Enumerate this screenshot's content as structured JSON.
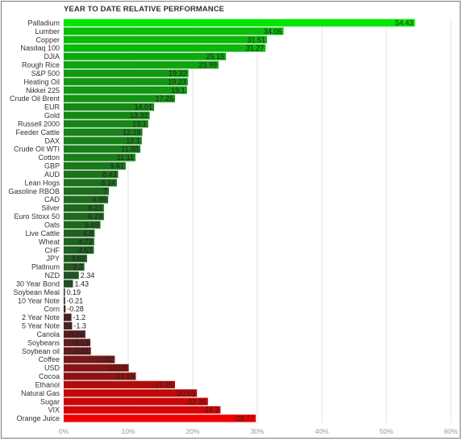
{
  "chart_data": {
    "type": "bar",
    "orientation": "horizontal",
    "title": "YEAR TO DATE RELATIVE PERFORMANCE",
    "categories": [
      "Palladium",
      "Lumber",
      "Copper",
      "Nasdaq 100",
      "DJIA",
      "Rough Rice",
      "S&P 500",
      "Heating Oil",
      "Nikkei 225",
      "Crude Oil Brent",
      "EUR",
      "Gold",
      "Russell 2000",
      "Feeder Cattle",
      "DAX",
      "Crude Oil WTI",
      "Cotton",
      "GBP",
      "AUD",
      "Lean Hogs",
      "Gasoline RBOB",
      "CAD",
      "Silver",
      "Euro Stoxx 50",
      "Oats",
      "Live Cattle",
      "Wheat",
      "CHF",
      "JPY",
      "Platinum",
      "NZD",
      "30 Year Bond",
      "Soybean Meal",
      "10 Year Note",
      "Corn",
      "2 Year Note",
      "5 Year Note",
      "Canola",
      "Soybeans",
      "Soybean oil",
      "Coffee",
      "USD",
      "Cocoa",
      "Ethanol",
      "Natural Gas",
      "Sugar",
      "VIX",
      "Orange Juice"
    ],
    "values": [
      54.43,
      34.06,
      31.51,
      31.27,
      25.15,
      23.99,
      19.32,
      19.23,
      19.1,
      17.25,
      14.01,
      13.32,
      13.1,
      12.19,
      12.1,
      11.88,
      11.11,
      9.61,
      8.43,
      8.24,
      7,
      6.89,
      6.23,
      6.23,
      5.69,
      4.8,
      4.72,
      4.67,
      3.62,
      3.2,
      2.34,
      1.43,
      0.19,
      -0.21,
      -0.28,
      -1.2,
      -1.3,
      -3.36,
      -4.13,
      -4.21,
      -7.92,
      -10.08,
      -11.19,
      -17.25,
      -20.65,
      -22.35,
      -24.3,
      -29.77
    ],
    "value_labels": [
      "54.43",
      "34.06",
      "31.51",
      "31.27",
      "25.15",
      "23.99",
      "19.32",
      "19.23",
      "19.1",
      "17.25",
      "14.01",
      "13.32",
      "13.1",
      "12.19",
      "12.1",
      "11.88",
      "11.11",
      "9.61",
      "8.43",
      "8.24",
      "7",
      "6.89",
      "6.23",
      "6.23",
      "5.69",
      "4.8",
      "4.72",
      "4.67",
      "3.62",
      "3.2",
      "2.34",
      "1.43",
      "0.19",
      "-0.21",
      "-0.28",
      "-1.2",
      "-1.3",
      "-3.36",
      "-4.13",
      "-4.21",
      "-7.92",
      "-10.08",
      "-11.19",
      "-17.25",
      "-20.65",
      "-22.35",
      "-24.3",
      "-29.77"
    ],
    "xlim": [
      0,
      60
    ],
    "xticks": [
      0,
      10,
      20,
      30,
      40,
      50,
      60
    ],
    "xtick_labels": [
      "0%",
      "10%",
      "20%",
      "30%",
      "40%",
      "50%",
      "60%"
    ],
    "grid": "vertical",
    "colors": {
      "positive_max": "#00e600",
      "positive_min": "#2a332a",
      "negative_min": "#3a2525",
      "negative_max": "#ee0000",
      "grid": "#e3e3e3"
    }
  }
}
